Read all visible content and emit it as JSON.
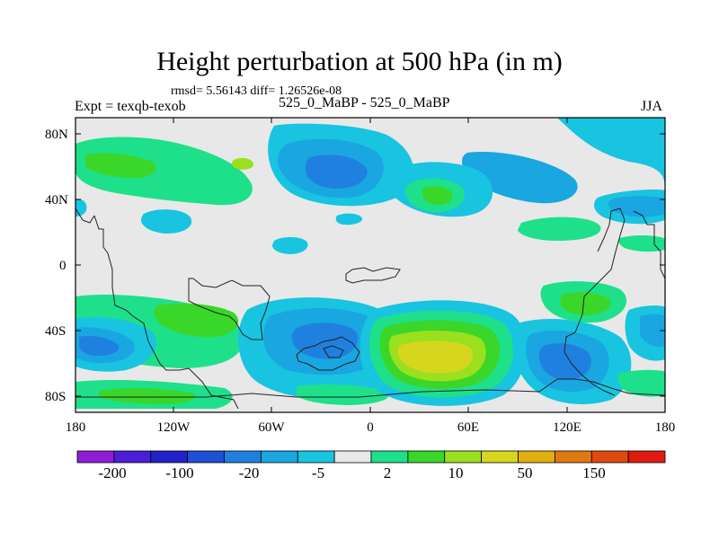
{
  "title": "Height perturbation at 500 hPa (in m)",
  "stats_line": "rmsd= 5.56143 diff= 1.26526e-08",
  "left_label": "Expt = texqb-texob",
  "center_label": "525_0_MaBP - 525_0_MaBP",
  "right_label": "JJA",
  "lat_labels": [
    "80N",
    "40N",
    "0",
    "40S",
    "80S"
  ],
  "lon_labels": [
    "180",
    "120W",
    "60W",
    "0",
    "60E",
    "120E",
    "180"
  ],
  "colorbar": {
    "labels": [
      "-200",
      "-100",
      "-20",
      "-5",
      "2",
      "10",
      "50",
      "150"
    ],
    "colors": [
      "#8c1fd6",
      "#4c1fd6",
      "#2222c8",
      "#1f4fd6",
      "#2080e0",
      "#1aa6e0",
      "#18c4e0",
      "#e8e8e8",
      "#1ee08a",
      "#3ad62a",
      "#9ae01e",
      "#d6d61e",
      "#e0b010",
      "#e07a10",
      "#e04a10",
      "#e01a10"
    ]
  },
  "colors": {
    "neutral": "#e8e8e8",
    "light_blue": "#18c4e0",
    "mid_blue": "#1aa6e0",
    "blue": "#2080e0",
    "green_light": "#1ee08a",
    "green": "#3ad62a",
    "yellow_green": "#9ae01e",
    "yellow": "#d6d61e"
  }
}
